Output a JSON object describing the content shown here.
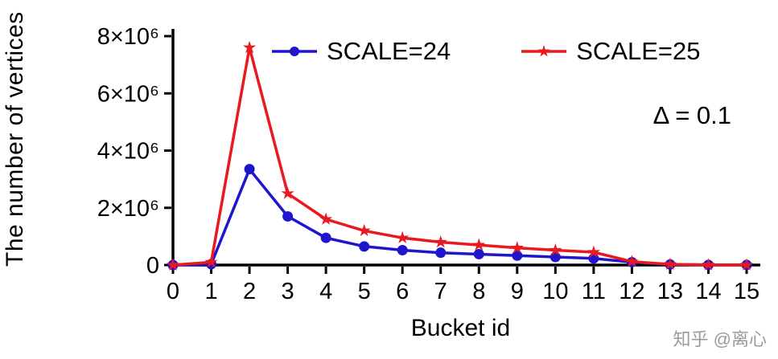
{
  "watermark": "知乎 @离心",
  "chart_data": {
    "type": "line",
    "title": "",
    "xlabel": "Bucket id",
    "ylabel": "The number of vertices",
    "annotation": "Δ = 0.1",
    "x": [
      0,
      1,
      2,
      3,
      4,
      5,
      6,
      7,
      8,
      9,
      10,
      11,
      12,
      13,
      14,
      15
    ],
    "xlim": [
      0,
      15
    ],
    "ylim": [
      0,
      8000000
    ],
    "yticks": {
      "values": [
        0,
        2000000,
        4000000,
        6000000,
        8000000
      ],
      "labels": [
        "0",
        "2×10⁶",
        "4×10⁶",
        "6×10⁶",
        "8×10⁶"
      ]
    },
    "grid": false,
    "legend_position": "top-center",
    "axis_color": "#000000",
    "series": [
      {
        "name": "SCALE=24",
        "color": "#2015cf",
        "marker": "circle",
        "values": [
          0,
          30000,
          3350000,
          1700000,
          950000,
          650000,
          520000,
          430000,
          380000,
          330000,
          280000,
          230000,
          100000,
          20000,
          5000,
          2000
        ]
      },
      {
        "name": "SCALE=25",
        "color": "#e8191f",
        "marker": "star",
        "values": [
          0,
          100000,
          7600000,
          2500000,
          1600000,
          1200000,
          950000,
          800000,
          700000,
          600000,
          520000,
          450000,
          120000,
          25000,
          6000,
          2000
        ]
      }
    ]
  }
}
